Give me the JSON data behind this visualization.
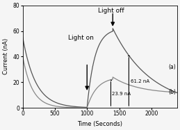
{
  "title_light_on": "Light on",
  "title_light_off": "Light off",
  "xlabel": "Time (Seconds)",
  "ylabel": "Current (nA)",
  "xlim": [
    0,
    2400
  ],
  "ylim": [
    0,
    80
  ],
  "xticks": [
    0,
    500,
    1000,
    1500,
    2000
  ],
  "yticks": [
    0,
    20,
    40,
    60,
    80
  ],
  "light_on_time": 1000,
  "light_off_time": 1400,
  "annotation_a": "61.2 nA",
  "annotation_b": "23.9 nA",
  "label_a": "(a)",
  "label_b": "(b)",
  "line_color_a": "#555555",
  "line_color_b": "#888888",
  "background_color": "#f5f5f5"
}
